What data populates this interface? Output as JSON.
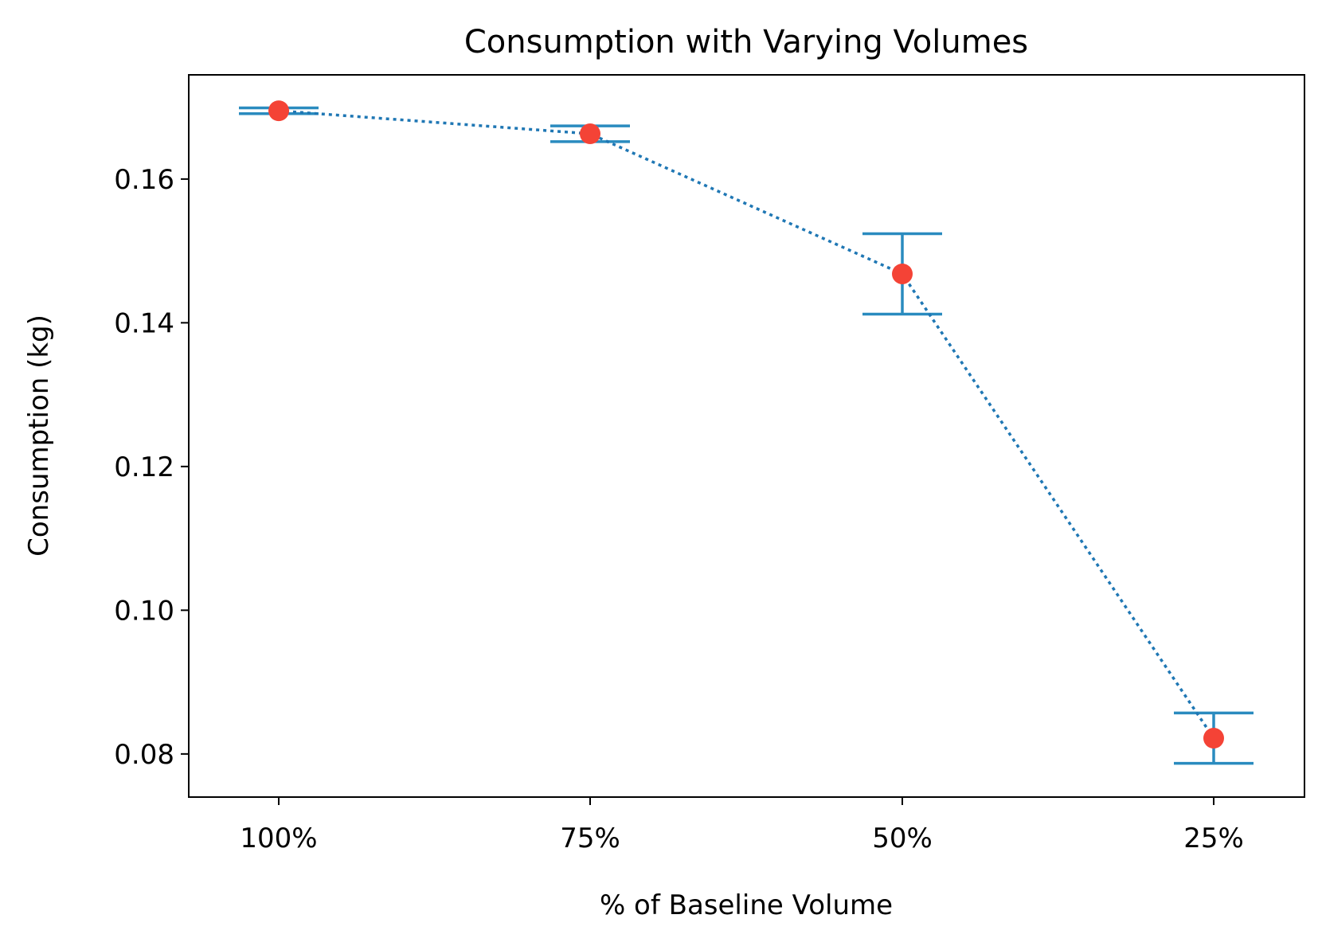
{
  "chart_data": {
    "type": "line",
    "title": "Consumption with Varying Volumes",
    "xlabel": "% of Baseline Volume",
    "ylabel": "Consumption (kg)",
    "categories": [
      "100%",
      "75%",
      "50%",
      "25%"
    ],
    "series": [
      {
        "values": [
          0.1695,
          0.1663,
          0.1468,
          0.0822
        ],
        "error": [
          0.0004,
          0.0011,
          0.0056,
          0.0035
        ],
        "line_style": "dotted",
        "line_color": "#1f77b4",
        "marker_color": "#f44336",
        "error_color": "#2a8bbf"
      }
    ],
    "ylim": [
      0.074,
      0.1745
    ],
    "yticks": [
      0.08,
      0.1,
      0.12,
      0.14,
      0.16
    ],
    "ytick_labels": [
      "0.08",
      "0.10",
      "0.12",
      "0.14",
      "0.16"
    ],
    "grid": false
  }
}
